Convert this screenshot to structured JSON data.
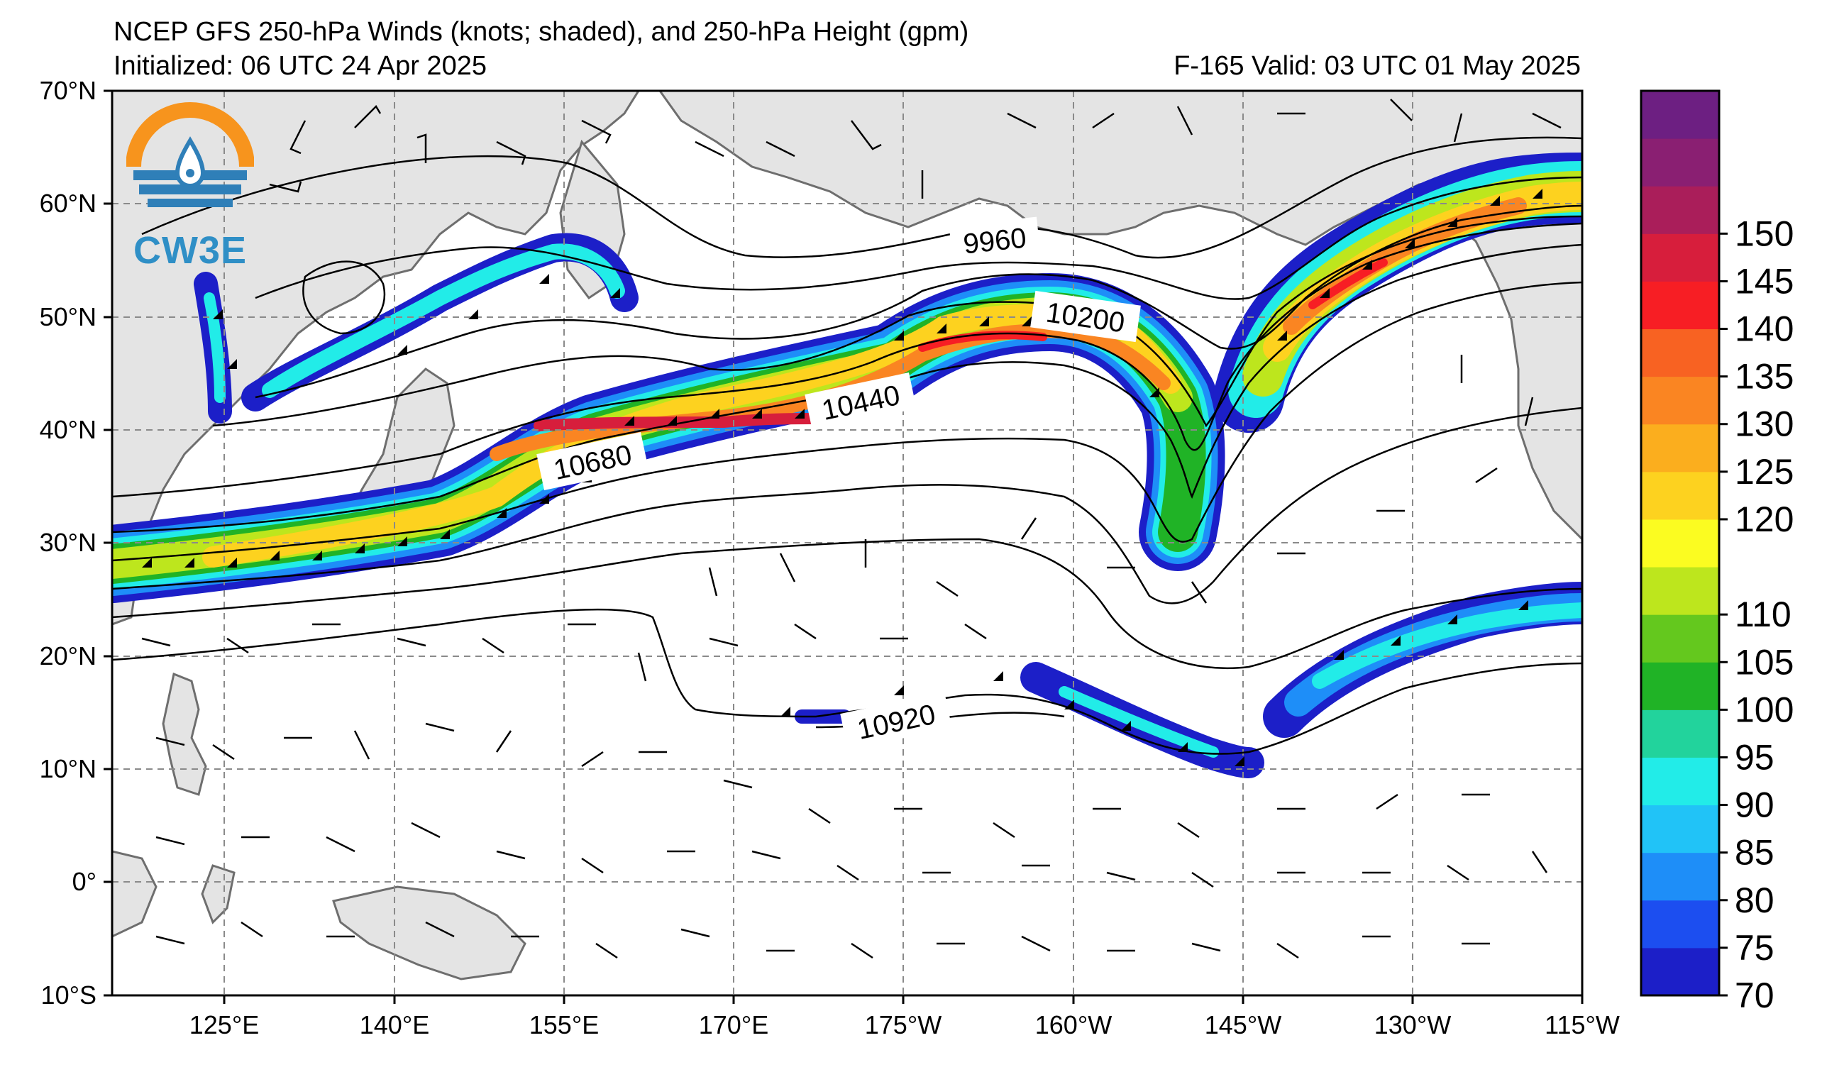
{
  "title": "NCEP GFS 250-hPa Winds (knots; shaded), and 250-hPa Height (gpm)",
  "initialized": "Initialized: 06 UTC 24 Apr 2025",
  "valid": "F-165  Valid: 03 UTC 01 May 2025",
  "logo": {
    "text": "CW3E"
  },
  "lat_labels": [
    "70°N",
    "60°N",
    "50°N",
    "40°N",
    "30°N",
    "20°N",
    "10°N",
    "0°",
    "10°S"
  ],
  "lon_labels": [
    "125°E",
    "140°E",
    "155°E",
    "170°E",
    "175°W",
    "160°W",
    "145°W",
    "130°W",
    "115°W"
  ],
  "contour_labels": [
    "9960",
    "10200",
    "10440",
    "10680",
    "10920"
  ],
  "colorbar": {
    "ticks": [
      "70",
      "75",
      "80",
      "85",
      "90",
      "95",
      "100",
      "105",
      "110",
      "120",
      "125",
      "130",
      "135",
      "140",
      "145",
      "150"
    ],
    "colors": [
      "#1c1fc8",
      "#1c4ef0",
      "#1e8ef8",
      "#21c3f7",
      "#22ece8",
      "#22d39c",
      "#20b326",
      "#64c81e",
      "#bde61d",
      "#fbfc21",
      "#fdd21f",
      "#fbae1e",
      "#fa8522",
      "#f86222",
      "#f71e24",
      "#d71e3c",
      "#aa1e5a",
      "#8a1f72",
      "#6d1f82"
    ]
  },
  "colors": {
    "land": "#e4e4e4",
    "coast": "#6e6e6e",
    "grid": "#8a8a8a",
    "frame": "#000000"
  }
}
